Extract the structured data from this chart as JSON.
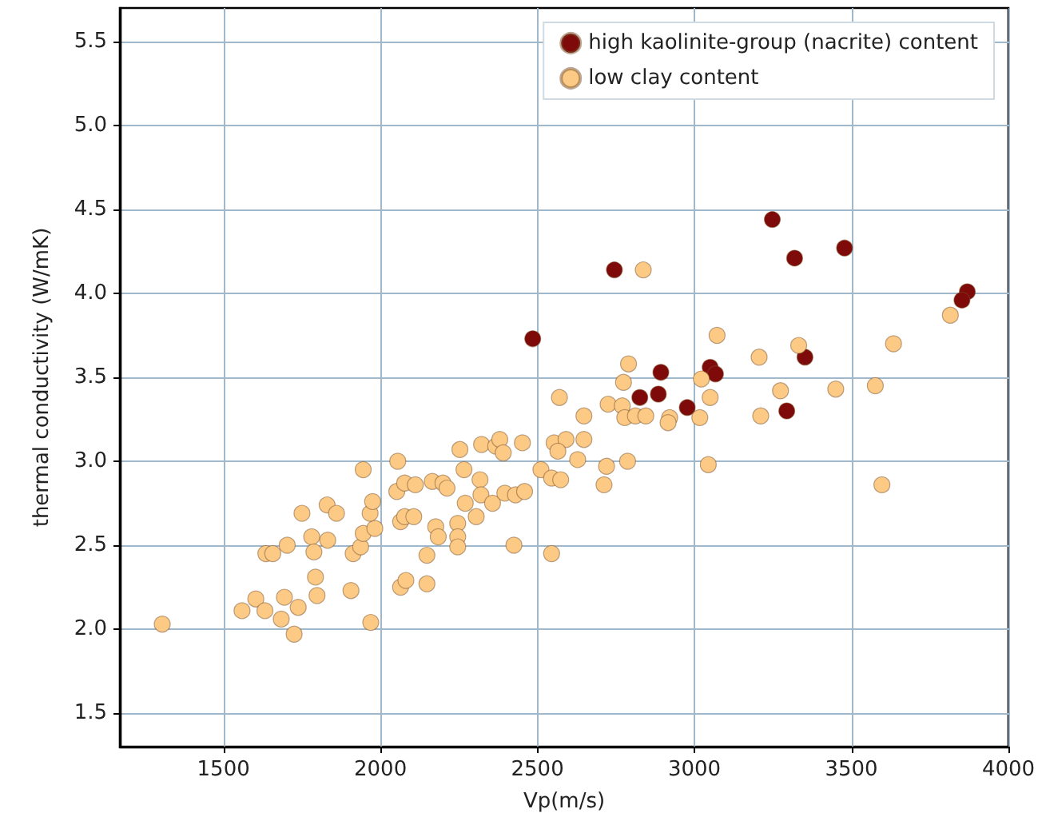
{
  "chart_data": {
    "type": "scatter",
    "xlabel": "Vp(m/s)",
    "ylabel": "thermal conductivity (W/mK)",
    "xlim": [
      1170,
      4000
    ],
    "xticks": [
      1500,
      2000,
      2500,
      3000,
      3500,
      4000
    ],
    "ylim": [
      1.3,
      5.7
    ],
    "yticks": [
      1.5,
      {
        "value": 2,
        "label": "2.0"
      },
      2.5,
      {
        "value": 3,
        "label": "3.0"
      },
      3.5,
      {
        "value": 4,
        "label": "4.0"
      },
      4.5,
      {
        "value": 5,
        "label": "5.0"
      },
      5.5
    ],
    "grid": true,
    "legend": "top right",
    "marker": "circle",
    "series": [
      {
        "name": "high kaolinite-group (nacrite) content",
        "color": "#7f0a0a",
        "x": [
          2485,
          2745,
          3248,
          3319,
          3478,
          3869,
          3852,
          3352,
          2893,
          2826,
          2885,
          3050,
          3067,
          2977,
          3294
        ],
        "values": [
          3.73,
          4.14,
          4.44,
          4.21,
          4.27,
          4.01,
          3.96,
          3.62,
          3.53,
          3.38,
          3.4,
          3.56,
          3.52,
          3.32,
          3.3
        ]
      },
      {
        "name": "low clay content",
        "color": "#fdca86",
        "x": [
          1305,
          1559,
          1603,
          1632,
          1684,
          1694,
          1725,
          1738,
          1798,
          1793,
          1635,
          1657,
          1703,
          1781,
          1788,
          1832,
          1750,
          1830,
          1860,
          1906,
          1913,
          1937,
          1945,
          1969,
          1982,
          1967,
          1975,
          1945,
          2055,
          2052,
          2077,
          2111,
          2064,
          2077,
          2106,
          2064,
          2081,
          2148,
          2148,
          2165,
          2199,
          2212,
          2176,
          2184,
          2246,
          2246,
          2246,
          2253,
          2266,
          2270,
          2305,
          2317,
          2320,
          2322,
          2357,
          2367,
          2380,
          2391,
          2396,
          2430,
          2452,
          2459,
          2425,
          2511,
          2545,
          2545,
          2553,
          2570,
          2574,
          2591,
          2565,
          2628,
          2648,
          2648,
          2720,
          2712,
          2787,
          2725,
          2770,
          2778,
          2812,
          2845,
          2921,
          2916,
          3017,
          3044,
          3050,
          3211,
          3274,
          3450,
          3576,
          3597,
          2837,
          3072,
          3206,
          3332,
          3634,
          3815,
          2790,
          2774,
          3022
        ],
        "values": [
          2.03,
          2.11,
          2.18,
          2.11,
          2.06,
          2.19,
          1.97,
          2.13,
          2.2,
          2.31,
          2.45,
          2.45,
          2.5,
          2.55,
          2.46,
          2.53,
          2.69,
          2.74,
          2.69,
          2.23,
          2.45,
          2.49,
          2.57,
          2.04,
          2.6,
          2.69,
          2.76,
          2.95,
          3.0,
          2.82,
          2.87,
          2.86,
          2.64,
          2.67,
          2.67,
          2.25,
          2.29,
          2.27,
          2.44,
          2.88,
          2.87,
          2.84,
          2.61,
          2.55,
          2.63,
          2.55,
          2.49,
          3.07,
          2.95,
          2.75,
          2.67,
          2.89,
          2.8,
          3.1,
          2.75,
          3.09,
          3.13,
          3.05,
          2.81,
          2.8,
          3.11,
          2.82,
          2.5,
          2.95,
          2.45,
          2.9,
          3.11,
          3.38,
          2.89,
          3.13,
          3.06,
          3.01,
          3.27,
          3.13,
          2.97,
          2.86,
          3.0,
          3.34,
          3.33,
          3.26,
          3.27,
          3.27,
          3.26,
          3.23,
          3.26,
          2.98,
          3.38,
          3.27,
          3.42,
          3.43,
          3.45,
          2.86,
          4.14,
          3.75,
          3.62,
          3.69,
          3.7,
          3.87,
          3.58,
          3.47,
          3.49
        ]
      }
    ]
  }
}
